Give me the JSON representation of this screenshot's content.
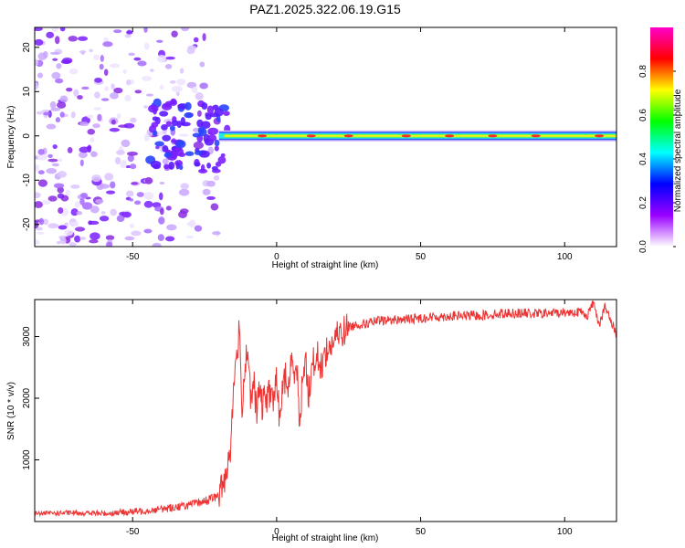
{
  "page": {
    "title": "PAZ1.2025.322.06.19.G15"
  },
  "chart_data": [
    {
      "type": "heatmap",
      "xlabel": "Height of straight line (km)",
      "ylabel": "Frequency (Hz)",
      "xlim": [
        -84,
        118
      ],
      "ylim": [
        -25,
        24.5
      ],
      "xticks": [
        -50,
        0,
        50,
        100
      ],
      "yticks": [
        -20,
        -10,
        0,
        10,
        20
      ],
      "colorbar": {
        "label": "Normalized spectral amplitude",
        "range": [
          0.0,
          1.0
        ],
        "ticks": [
          0.0,
          0.2,
          0.4,
          0.6,
          0.8
        ],
        "tick_labels": [
          "0.0",
          "0.2",
          "0.4",
          "0.6",
          "0.8"
        ],
        "colors": [
          "#ffffff",
          "#9900ff",
          "#0000ff",
          "#00ffff",
          "#00ff00",
          "#ffff00",
          "#ff0000",
          "#ff00cc"
        ]
      },
      "description_of_features": {
        "noise_region_x": [
          -84,
          -20
        ],
        "signal_line_freq": 0,
        "signal_start_x": -20,
        "signal_end_x": 118
      }
    },
    {
      "type": "line",
      "xlabel": "Height of straight line (km)",
      "ylabel": "SNR (10 * v/v)",
      "xlim": [
        -84,
        118
      ],
      "ylim": [
        0,
        3600
      ],
      "xticks": [
        -50,
        0,
        50,
        100
      ],
      "yticks": [
        1000,
        2000,
        3000
      ],
      "color": "#ee3333",
      "series": [
        {
          "x": [
            -84,
            -70,
            -60,
            -50,
            -40,
            -30,
            -25,
            -20,
            -18,
            -16,
            -15,
            -14,
            -13,
            -12,
            -11,
            -10,
            -9,
            -8,
            -7,
            -6,
            -5,
            -4,
            -3,
            -2,
            -1,
            0,
            1,
            2,
            3,
            4,
            5,
            6,
            7,
            8,
            9,
            10,
            11,
            12,
            13,
            14,
            15,
            16,
            17,
            18,
            19,
            20,
            22,
            25,
            28,
            30,
            35,
            40,
            45,
            50,
            55,
            60,
            65,
            70,
            75,
            80,
            85,
            90,
            95,
            100,
            105,
            108,
            110,
            112,
            114,
            116,
            118
          ],
          "y": [
            130,
            140,
            130,
            160,
            200,
            270,
            330,
            420,
            700,
            1200,
            2100,
            2700,
            3050,
            1900,
            2500,
            2900,
            1850,
            2300,
            1750,
            2150,
            1850,
            2050,
            2000,
            2150,
            1950,
            2300,
            1700,
            2100,
            2350,
            2150,
            2550,
            2450,
            2650,
            1400,
            2400,
            2700,
            2000,
            2450,
            2600,
            2750,
            2450,
            2600,
            2750,
            2800,
            2850,
            2950,
            3050,
            3150,
            3200,
            3200,
            3250,
            3270,
            3280,
            3300,
            3320,
            3330,
            3340,
            3340,
            3360,
            3380,
            3380,
            3370,
            3380,
            3390,
            3400,
            3350,
            3560,
            3200,
            3480,
            3250,
            3050
          ]
        }
      ]
    }
  ]
}
